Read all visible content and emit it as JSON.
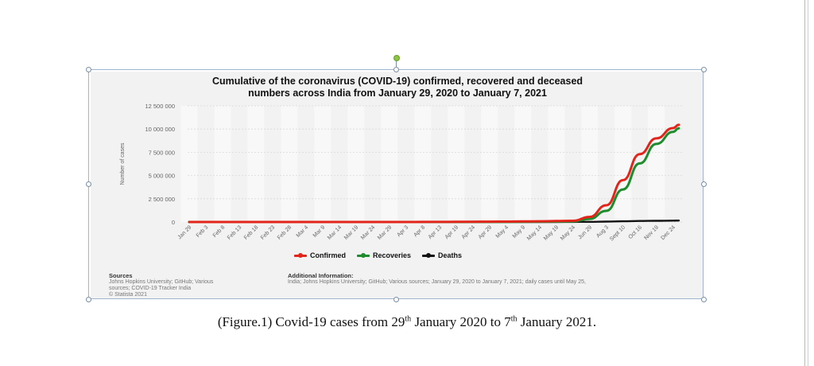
{
  "chart_data": {
    "type": "line",
    "title_line1": "Cumulative of the coronavirus (COVID-19) confirmed, recovered and deceased",
    "title_line2": "numbers across India from January 29, 2020 to January 7, 2021",
    "ylabel": "Number of cases",
    "xlabel": "",
    "ylim": [
      0,
      12500000
    ],
    "y_ticks": [
      0,
      2500000,
      5000000,
      7500000,
      10000000,
      12500000
    ],
    "y_tick_labels": [
      "0",
      "2 500 000",
      "5 000 000",
      "7 500 000",
      "10 000 000",
      "12 500 000"
    ],
    "categories": [
      "Jan 29",
      "Feb 3",
      "Feb 8",
      "Feb 13",
      "Feb 18",
      "Feb 23",
      "Feb 28",
      "Mar 4",
      "Mar 9",
      "Mar 14",
      "Mar 19",
      "Mar 24",
      "Mar 29",
      "Apr 3",
      "Apr 8",
      "Apr 13",
      "Apr 19",
      "Apr 24",
      "Apr 29",
      "May 4",
      "May 9",
      "May 14",
      "May 19",
      "May 24",
      "Jun 29",
      "Aug 3",
      "Sept 10",
      "Oct 16",
      "Nov 19",
      "Dec 24"
    ],
    "series": [
      {
        "name": "Confirmed",
        "color": "#e3241b",
        "values": [
          0,
          0,
          0,
          0,
          0,
          0,
          0,
          0,
          0,
          0,
          0,
          500,
          1000,
          2500,
          5000,
          10000,
          15000,
          25000,
          32000,
          45000,
          60000,
          80000,
          100000,
          130000,
          550000,
          1800000,
          4500000,
          7300000,
          9000000,
          10100000
        ]
      },
      {
        "name": "Recoveries",
        "color": "#1e8c2d",
        "values": [
          0,
          0,
          0,
          0,
          0,
          0,
          0,
          0,
          0,
          0,
          0,
          40,
          100,
          200,
          500,
          1500,
          3000,
          5000,
          8000,
          12000,
          25000,
          35000,
          45000,
          60000,
          330000,
          1200000,
          3500000,
          6300000,
          8400000,
          9700000
        ]
      },
      {
        "name": "Deaths",
        "color": "#111111",
        "values": [
          0,
          0,
          0,
          0,
          0,
          0,
          0,
          0,
          0,
          0,
          0,
          10,
          30,
          80,
          180,
          340,
          560,
          780,
          1000,
          1400,
          2100,
          2700,
          3400,
          4300,
          16000,
          39000,
          75000,
          112000,
          130000,
          146000
        ]
      }
    ],
    "last_point": {
      "Confirmed": 10450000,
      "Recoveries": 10080000,
      "Deaths": 150000
    },
    "grid": true,
    "legend_position": "bottom"
  },
  "sources": {
    "heading": "Sources",
    "lines": [
      "Johns Hopkins University; GitHub; Various",
      "sources; COVID-19 Tracker India",
      "© Statista 2021"
    ]
  },
  "additional_info": {
    "heading": "Additional Information:",
    "text": "India; Johns Hopkins University; GitHub; Various sources; January 29, 2020 to January 7, 2021; daily cases until May 25,"
  },
  "caption": {
    "prefix": "(Figure.1) Covid-19 cases from 29",
    "sup1": "th",
    "middle": " January 2020 to 7",
    "sup2": "th",
    "suffix": " January 2021."
  }
}
